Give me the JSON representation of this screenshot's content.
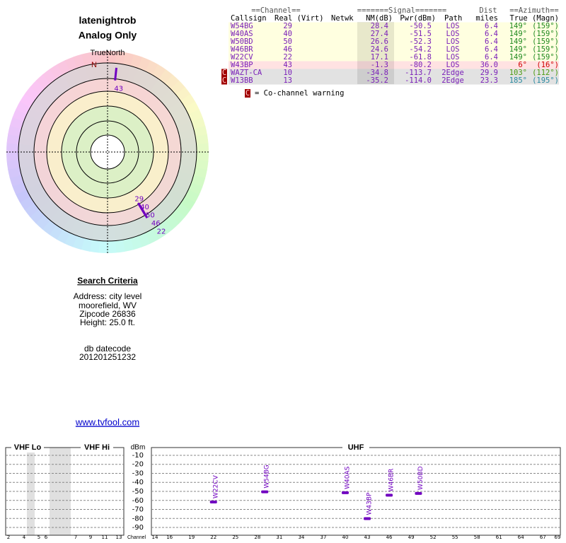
{
  "header": {
    "title": "latenightrob",
    "subtitle": "Analog Only"
  },
  "polar": {
    "north_label": "TrueNorth",
    "n_marker": "N",
    "mark_color": "#7000c0"
  },
  "table": {
    "group_headers": [
      "==Channel==",
      "=======Signal=======",
      "Dist",
      "==Azimuth=="
    ],
    "columns": [
      "Callsign",
      "Real (Virt)",
      "Netwk",
      "NM(dB)",
      "Pwr(dBm)",
      "Path",
      "miles",
      "True (Magn)"
    ],
    "rows": [
      {
        "callsign": "W54BG",
        "real": "29",
        "nm": "28.4",
        "pwr": "-50.5",
        "path": "LOS",
        "dist": "6.4",
        "az_true": "149°",
        "az_magn": "(159°)",
        "row_color": "#ffffe0",
        "az_color": "#208a20"
      },
      {
        "callsign": "W40AS",
        "real": "40",
        "nm": "27.4",
        "pwr": "-51.5",
        "path": "LOS",
        "dist": "6.4",
        "az_true": "149°",
        "az_magn": "(159°)",
        "row_color": "#ffffe0",
        "az_color": "#208a20"
      },
      {
        "callsign": "W50BD",
        "real": "50",
        "nm": "26.6",
        "pwr": "-52.3",
        "path": "LOS",
        "dist": "6.4",
        "az_true": "149°",
        "az_magn": "(159°)",
        "row_color": "#ffffe0",
        "az_color": "#208a20"
      },
      {
        "callsign": "W46BR",
        "real": "46",
        "nm": "24.6",
        "pwr": "-54.2",
        "path": "LOS",
        "dist": "6.4",
        "az_true": "149°",
        "az_magn": "(159°)",
        "row_color": "#ffffe0",
        "az_color": "#208a20"
      },
      {
        "callsign": "W22CV",
        "real": "22",
        "nm": "17.1",
        "pwr": "-61.8",
        "path": "LOS",
        "dist": "6.4",
        "az_true": "149°",
        "az_magn": "(159°)",
        "row_color": "#ffffe0",
        "az_color": "#208a20"
      },
      {
        "callsign": "W43BP",
        "real": "43",
        "nm": "-1.3",
        "pwr": "-80.2",
        "path": "LOS",
        "dist": "36.0",
        "az_true": "6°",
        "az_magn": "(16°)",
        "row_color": "#ffe2e2",
        "az_color": "#d00000"
      },
      {
        "callsign": "WAZT-CA",
        "real": "10",
        "nm": "-34.8",
        "pwr": "-113.7",
        "path": "2Edge",
        "dist": "29.9",
        "az_true": "103°",
        "az_magn": "(112°)",
        "row_color": "#e2e2e2",
        "az_color": "#4a9a10",
        "co_channel": true
      },
      {
        "callsign": "W13BB",
        "real": "13",
        "nm": "-35.2",
        "pwr": "-114.0",
        "path": "2Edge",
        "dist": "23.3",
        "az_true": "185°",
        "az_magn": "(195°)",
        "row_color": "#e2e2e2",
        "az_color": "#2a8aa0",
        "co_channel": true
      }
    ]
  },
  "legend": {
    "symbol": "C",
    "text": "= Co-channel warning"
  },
  "search": {
    "title": "Search Criteria",
    "lines": [
      "Address: city level",
      "moorefield, WV",
      "Zipcode 26836",
      "Height: 25.0 ft."
    ],
    "datecode_label": "db datecode",
    "datecode": "201201251232",
    "link": "www.tvfool.com"
  },
  "spectrum": {
    "sections": [
      "VHF Lo",
      "VHF Hi",
      "UHF"
    ],
    "unit": "dBm",
    "x_label": "Channel",
    "ylim": [
      -99,
      -1
    ],
    "yticks": [
      -10,
      -20,
      -30,
      -40,
      -50,
      -60,
      -70,
      -80,
      -90
    ],
    "vhf_ticks": [
      2,
      4,
      5,
      6,
      7,
      9,
      11,
      13
    ],
    "uhf_xlim": [
      14,
      69
    ],
    "uhf_ticks": [
      14,
      16,
      19,
      22,
      25,
      28,
      31,
      34,
      37,
      40,
      43,
      46,
      49,
      52,
      55,
      58,
      61,
      64,
      67,
      69
    ],
    "mark_color": "#7000c0",
    "grid": true
  }
}
